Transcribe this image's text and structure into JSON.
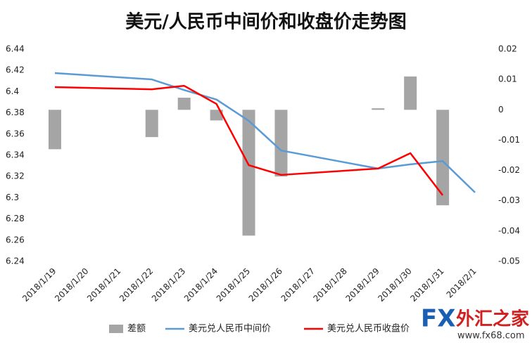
{
  "chart_data": {
    "type": "bar-line",
    "title": "美元/人民币中间价和收盘价走势图",
    "categories": [
      "2018/1/19",
      "2018/1/20",
      "2018/1/21",
      "2018/1/22",
      "2018/1/23",
      "2018/1/24",
      "2018/1/25",
      "2018/1/26",
      "2018/1/27",
      "2018/1/28",
      "2018/1/29",
      "2018/1/30",
      "2018/1/31",
      "2018/2/1"
    ],
    "series": [
      {
        "name": "差额",
        "type": "bar",
        "axis": "y2",
        "color": "#a5a5a5",
        "values": [
          -0.013,
          null,
          null,
          -0.009,
          0.004,
          -0.0035,
          -0.0415,
          -0.022,
          null,
          null,
          0.0005,
          0.011,
          -0.0315,
          null
        ]
      },
      {
        "name": "美元兑人民币中间价",
        "type": "line",
        "color": "#5b9bd5",
        "values": [
          6.4175,
          null,
          null,
          6.4115,
          6.4015,
          6.3925,
          6.3725,
          6.3445,
          null,
          null,
          6.3275,
          6.3315,
          6.3345,
          6.305
        ]
      },
      {
        "name": "美元兑人民币收盘价",
        "type": "line",
        "color": "#ff0000",
        "values": [
          6.4042,
          null,
          null,
          6.4022,
          6.4055,
          6.3884,
          6.3307,
          6.3215,
          null,
          null,
          6.3275,
          6.342,
          6.3023,
          null
        ]
      }
    ],
    "span_gaps": true,
    "ylim": [
      6.24,
      6.44
    ],
    "yticks": [
      6.24,
      6.26,
      6.28,
      6.3,
      6.32,
      6.34,
      6.36,
      6.38,
      6.4,
      6.42,
      6.44
    ],
    "y2lim": [
      -0.05,
      0.02
    ],
    "y2ticks": [
      -0.05,
      -0.04,
      -0.03,
      -0.02,
      -0.01,
      0,
      0.01,
      0.02
    ],
    "grid": false,
    "legend": "bottom",
    "logo": {
      "brand": "FX",
      "name": "外汇之家",
      "url": "www.fx68.com"
    }
  }
}
